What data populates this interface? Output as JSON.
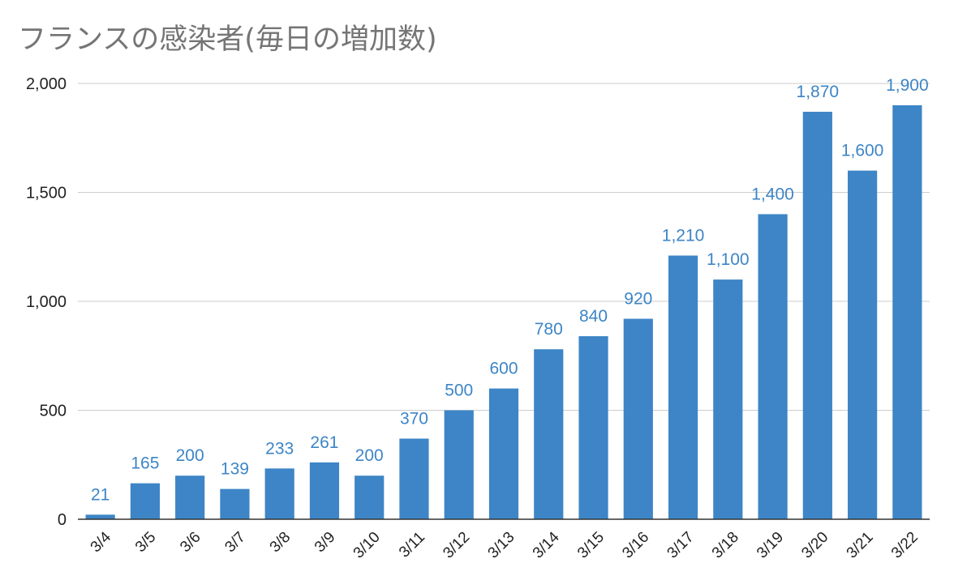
{
  "chart_data": {
    "type": "bar",
    "title": "フランスの感染者(毎日の増加数)",
    "xlabel": "",
    "ylabel": "",
    "categories": [
      "3/4",
      "3/5",
      "3/6",
      "3/7",
      "3/8",
      "3/9",
      "3/10",
      "3/11",
      "3/12",
      "3/13",
      "3/14",
      "3/15",
      "3/16",
      "3/17",
      "3/18",
      "3/19",
      "3/20",
      "3/21",
      "3/22"
    ],
    "values": [
      21,
      165,
      200,
      139,
      233,
      261,
      200,
      370,
      500,
      600,
      780,
      840,
      920,
      1210,
      1100,
      1400,
      1870,
      1600,
      1900
    ],
    "data_labels": [
      "21",
      "165",
      "200",
      "139",
      "233",
      "261",
      "200",
      "370",
      "500",
      "600",
      "780",
      "840",
      "920",
      "1,210",
      "1,100",
      "1,400",
      "1,870",
      "1,600",
      "1,900"
    ],
    "ylim": [
      0,
      2000
    ],
    "yticks": [
      0,
      500,
      1000,
      1500,
      2000
    ],
    "ytick_labels": [
      "0",
      "500",
      "1,000",
      "1,500",
      "2,000"
    ],
    "grid": true,
    "legend": "none",
    "bar_color": "#3d85c6",
    "label_color": "#3d85c6",
    "grid_color": "#cccccc",
    "axis_color": "#333333"
  }
}
